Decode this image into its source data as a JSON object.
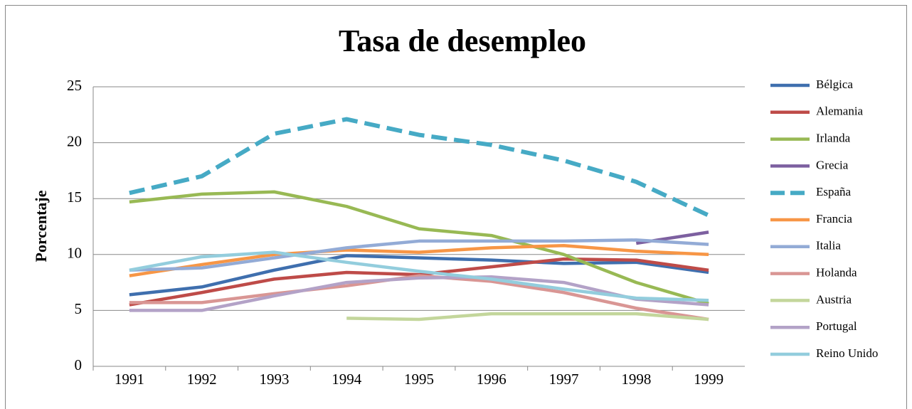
{
  "chart_data": {
    "type": "line",
    "title": "Tasa de desempleo",
    "y_label": "Porcentaje",
    "categories": [
      "1991",
      "1992",
      "1993",
      "1994",
      "1995",
      "1996",
      "1997",
      "1998",
      "1999"
    ],
    "ylim": [
      0,
      25
    ],
    "yticks": [
      0,
      5,
      10,
      15,
      20,
      25
    ],
    "grid": true,
    "legend": "right",
    "series": [
      {
        "name": "Bélgica",
        "color": "#3f6fae",
        "values": [
          6.4,
          7.1,
          8.6,
          9.9,
          9.7,
          9.5,
          9.2,
          9.3,
          8.4
        ]
      },
      {
        "name": "Alemania",
        "color": "#be4b48",
        "values": [
          5.5,
          6.6,
          7.8,
          8.4,
          8.2,
          8.9,
          9.6,
          9.5,
          8.6
        ]
      },
      {
        "name": "Irlanda",
        "color": "#98b954",
        "values": [
          14.7,
          15.4,
          15.6,
          14.3,
          12.3,
          11.7,
          10.0,
          7.5,
          5.6
        ]
      },
      {
        "name": "Grecia",
        "color": "#7d60a0",
        "values": [
          null,
          null,
          null,
          null,
          null,
          null,
          null,
          11.0,
          12.0
        ]
      },
      {
        "name": "España",
        "color": "#46aac5",
        "dashed": true,
        "values": [
          15.5,
          17.0,
          20.8,
          22.1,
          20.7,
          19.8,
          18.4,
          16.5,
          13.5
        ]
      },
      {
        "name": "Francia",
        "color": "#f79646",
        "values": [
          8.1,
          9.1,
          10.0,
          10.4,
          10.2,
          10.6,
          10.8,
          10.3,
          10.0
        ]
      },
      {
        "name": "Italia",
        "color": "#93abd6",
        "values": [
          8.6,
          8.8,
          9.7,
          10.6,
          11.2,
          11.2,
          11.2,
          11.3,
          10.9
        ]
      },
      {
        "name": "Holanda",
        "color": "#d99694",
        "values": [
          5.7,
          5.7,
          6.5,
          7.2,
          8.1,
          7.6,
          6.6,
          5.2,
          4.2
        ]
      },
      {
        "name": "Austria",
        "color": "#c3d69b",
        "values": [
          null,
          null,
          null,
          4.3,
          4.2,
          4.7,
          4.7,
          4.7,
          4.2
        ]
      },
      {
        "name": "Portugal",
        "color": "#b3a2c7",
        "values": [
          5.0,
          5.0,
          6.3,
          7.5,
          7.9,
          8.0,
          7.5,
          6.0,
          5.5
        ]
      },
      {
        "name": "Reino Unido",
        "color": "#93cddd",
        "values": [
          8.6,
          9.8,
          10.2,
          9.3,
          8.5,
          7.8,
          6.9,
          6.1,
          5.9
        ]
      }
    ]
  }
}
